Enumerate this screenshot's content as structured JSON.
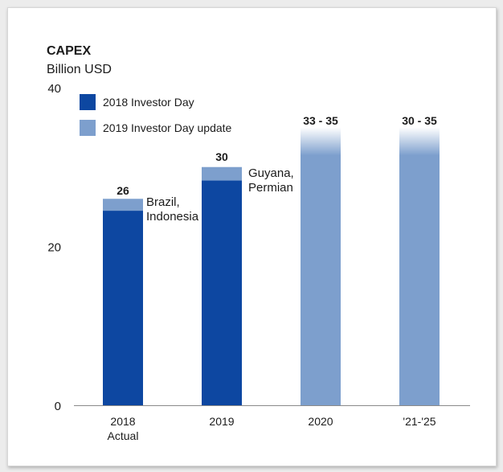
{
  "chart_data": {
    "type": "bar",
    "title": "CAPEX",
    "subtitle": "Billion USD",
    "ylim": [
      0,
      40
    ],
    "y_ticks": [
      0,
      20,
      40
    ],
    "categories": [
      "2018\nActual",
      "2019",
      "2020",
      "'21-'25"
    ],
    "series": [
      {
        "name": "2018 Investor Day",
        "values": [
          24.5,
          28.3,
          null,
          null
        ]
      },
      {
        "name": "2019 Investor Day update",
        "values": [
          1.5,
          1.7,
          35,
          35
        ]
      }
    ],
    "totals": [
      "26",
      "30",
      "33 - 35",
      "30 - 35"
    ],
    "annotations": [
      "Brazil,\nIndonesia",
      "Guyana,\nPermian",
      "",
      ""
    ],
    "colors": {
      "dark": "#0d47a1",
      "light": "#7d9fcd",
      "axis": "#8a8a8a"
    },
    "legend": "top-left"
  }
}
